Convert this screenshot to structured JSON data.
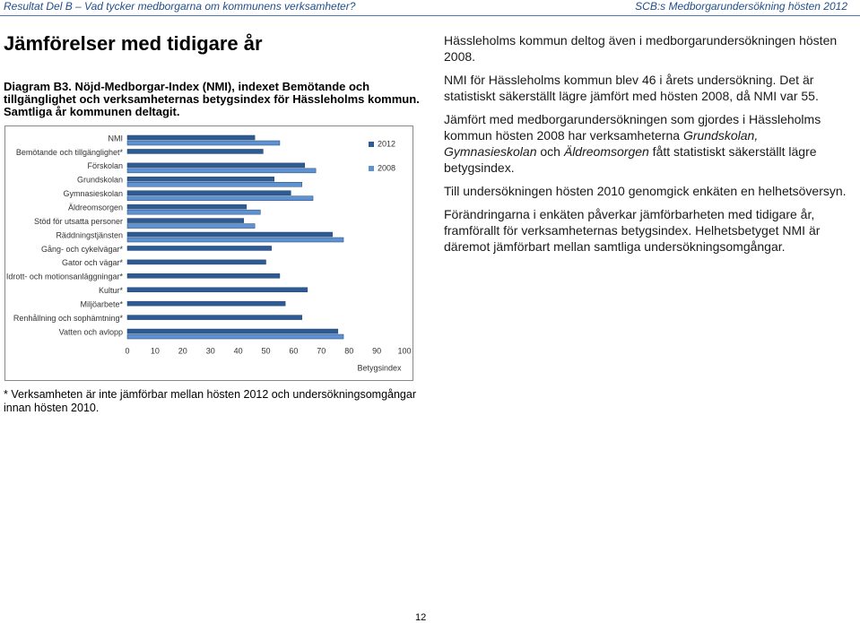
{
  "header": {
    "left": "Resultat Del B – Vad tycker medborgarna om kommunens verksamheter?",
    "right": "SCB:s Medborgarundersökning hösten 2012"
  },
  "heading": "Jämförelser med tidigare år",
  "caption": "Diagram B3. Nöjd-Medborgar-Index (NMI), indexet Bemötande och tillgänglighet och verksamheternas betygsindex för Hässleholms kommun. Samtliga år kommunen deltagit.",
  "chart_data": {
    "type": "bar",
    "orientation": "horizontal",
    "categories": [
      "NMI",
      "Bemötande och tillgänglighet*",
      "Förskolan",
      "Grundskolan",
      "Gymnasieskolan",
      "Äldreomsorgen",
      "Stöd för utsatta personer",
      "Räddningstjänsten",
      "Gång- och cykelvägar*",
      "Gator och vägar*",
      "Idrott- och motionsanläggningar*",
      "Kultur*",
      "Miljöarbete*",
      "Renhållning och sophämtning*",
      "Vatten och avlopp"
    ],
    "series": [
      {
        "name": "2012",
        "color": "#2f5b94",
        "values": [
          46,
          49,
          64,
          53,
          59,
          43,
          42,
          74,
          52,
          50,
          55,
          65,
          57,
          63,
          76
        ]
      },
      {
        "name": "2008",
        "color": "#5e92d2",
        "values": [
          55,
          null,
          68,
          63,
          67,
          48,
          46,
          78,
          null,
          null,
          null,
          null,
          null,
          null,
          78
        ]
      }
    ],
    "xlim": [
      0,
      100
    ],
    "xticks": [
      0,
      10,
      20,
      30,
      40,
      50,
      60,
      70,
      80,
      90,
      100
    ],
    "x_label": "Betygsindex",
    "legend": "upper right",
    "grid": false
  },
  "footnote": "* Verksamheten är inte jämförbar mellan hösten 2012 och undersökningsomgångar innan hösten 2010.",
  "body": [
    [
      {
        "text": "Hässleholms kommun deltog även i medborgarundersökningen hösten 2008.",
        "italic": false
      }
    ],
    [
      {
        "text": "NMI för Hässleholms kommun blev 46 i årets undersökning. Det är statistiskt säkerställt lägre jämfört med hösten 2008, då NMI var 55.",
        "italic": false
      }
    ],
    [
      {
        "text": "Jämfört med medborgarundersökningen som gjordes i Hässleholms kommun hösten 2008 har verksamheterna ",
        "italic": false
      },
      {
        "text": "Grundskolan, Gymnasieskolan",
        "italic": true
      },
      {
        "text": " och ",
        "italic": false
      },
      {
        "text": "Äldreomsorgen",
        "italic": true
      },
      {
        "text": " fått statistiskt säkerställt lägre betygsindex.",
        "italic": false
      }
    ],
    [
      {
        "text": "Till undersökningen hösten 2010 genomgick enkäten en helhetsöversyn.",
        "italic": false
      }
    ],
    [
      {
        "text": "Förändringarna i enkäten påverkar jämförbarheten med tidigare år, framförallt för verksamheternas betygsindex. Helhetsbetyget NMI är däremot jämförbart mellan samtliga undersökningsomgångar.",
        "italic": false
      }
    ]
  ],
  "page_number": "12"
}
